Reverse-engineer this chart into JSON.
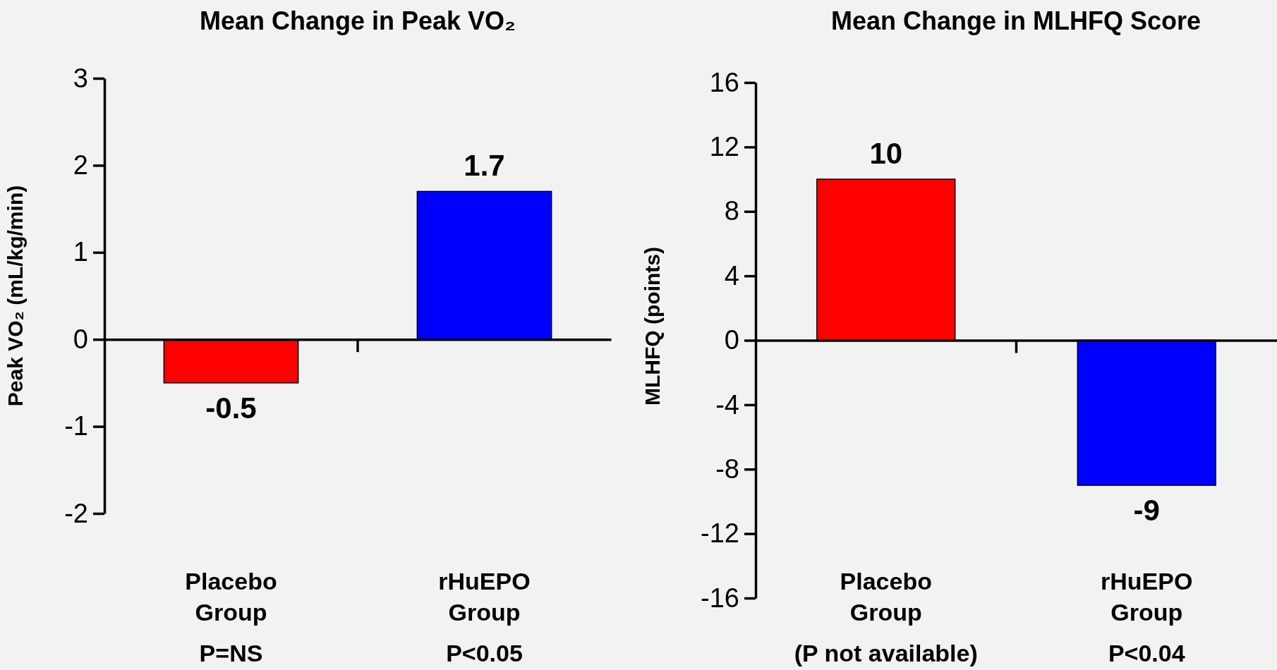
{
  "chart_data": [
    {
      "type": "bar",
      "title": "Mean Change in Peak VO₂",
      "ylabel": "Peak VO₂ (mL/kg/min)",
      "categories": [
        "Placebo Group",
        "rHuEPO Group"
      ],
      "values": [
        -0.5,
        1.7
      ],
      "colors": [
        "#ff0000",
        "#0000ff"
      ],
      "ylim": [
        -2,
        3
      ],
      "yticks": [
        -2,
        -1,
        0,
        1,
        2,
        3
      ],
      "data_labels": true,
      "annotations": [
        "P=NS",
        "P<0.05"
      ]
    },
    {
      "type": "bar",
      "title": "Mean Change in MLHFQ Score",
      "ylabel": "MLHFQ (points)",
      "categories": [
        "Placebo Group",
        "rHuEPO Group"
      ],
      "values": [
        10,
        -9
      ],
      "colors": [
        "#ff0000",
        "#0000ff"
      ],
      "ylim": [
        -16,
        16
      ],
      "yticks": [
        -16,
        -12,
        -8,
        -4,
        0,
        4,
        8,
        12,
        16
      ],
      "data_labels": true,
      "annotations": [
        "(P not available)",
        "P<0.04"
      ]
    }
  ]
}
